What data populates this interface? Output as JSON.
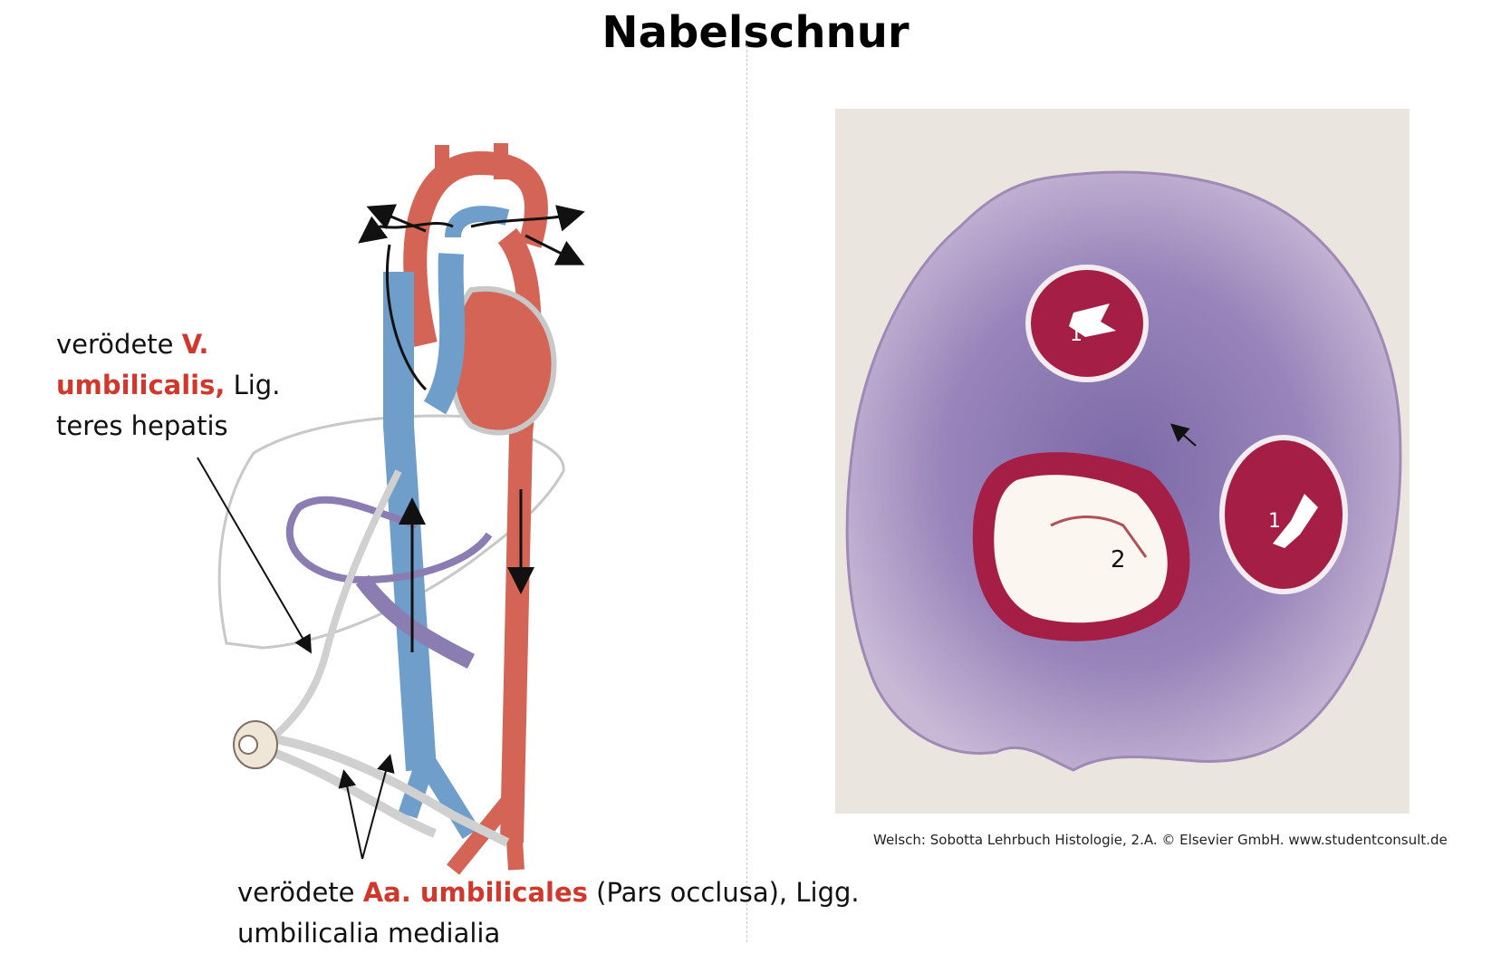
{
  "title": "Nabelschnur",
  "label_vein": {
    "prefix": "verödete ",
    "highlight": "V. umbilicalis,",
    "suffix": " Lig. teres hepatis"
  },
  "label_arteries": {
    "prefix": "verödete ",
    "highlight": "Aa. umbilicales",
    "suffix": " (Pars occlusa), Ligg. umbilicalia medialia"
  },
  "histology": {
    "marker_artery": "1",
    "marker_vein": "2"
  },
  "caption": "Welsch: Sobotta Lehrbuch Histologie, 2.A. © Elsevier GmbH. www.studentconsult.de",
  "colors": {
    "red_label": "#d2372c",
    "artery": "#d46455",
    "vein": "#6f9ecb",
    "portal": "#8b7cb1",
    "tissue": "#9d86b6"
  }
}
